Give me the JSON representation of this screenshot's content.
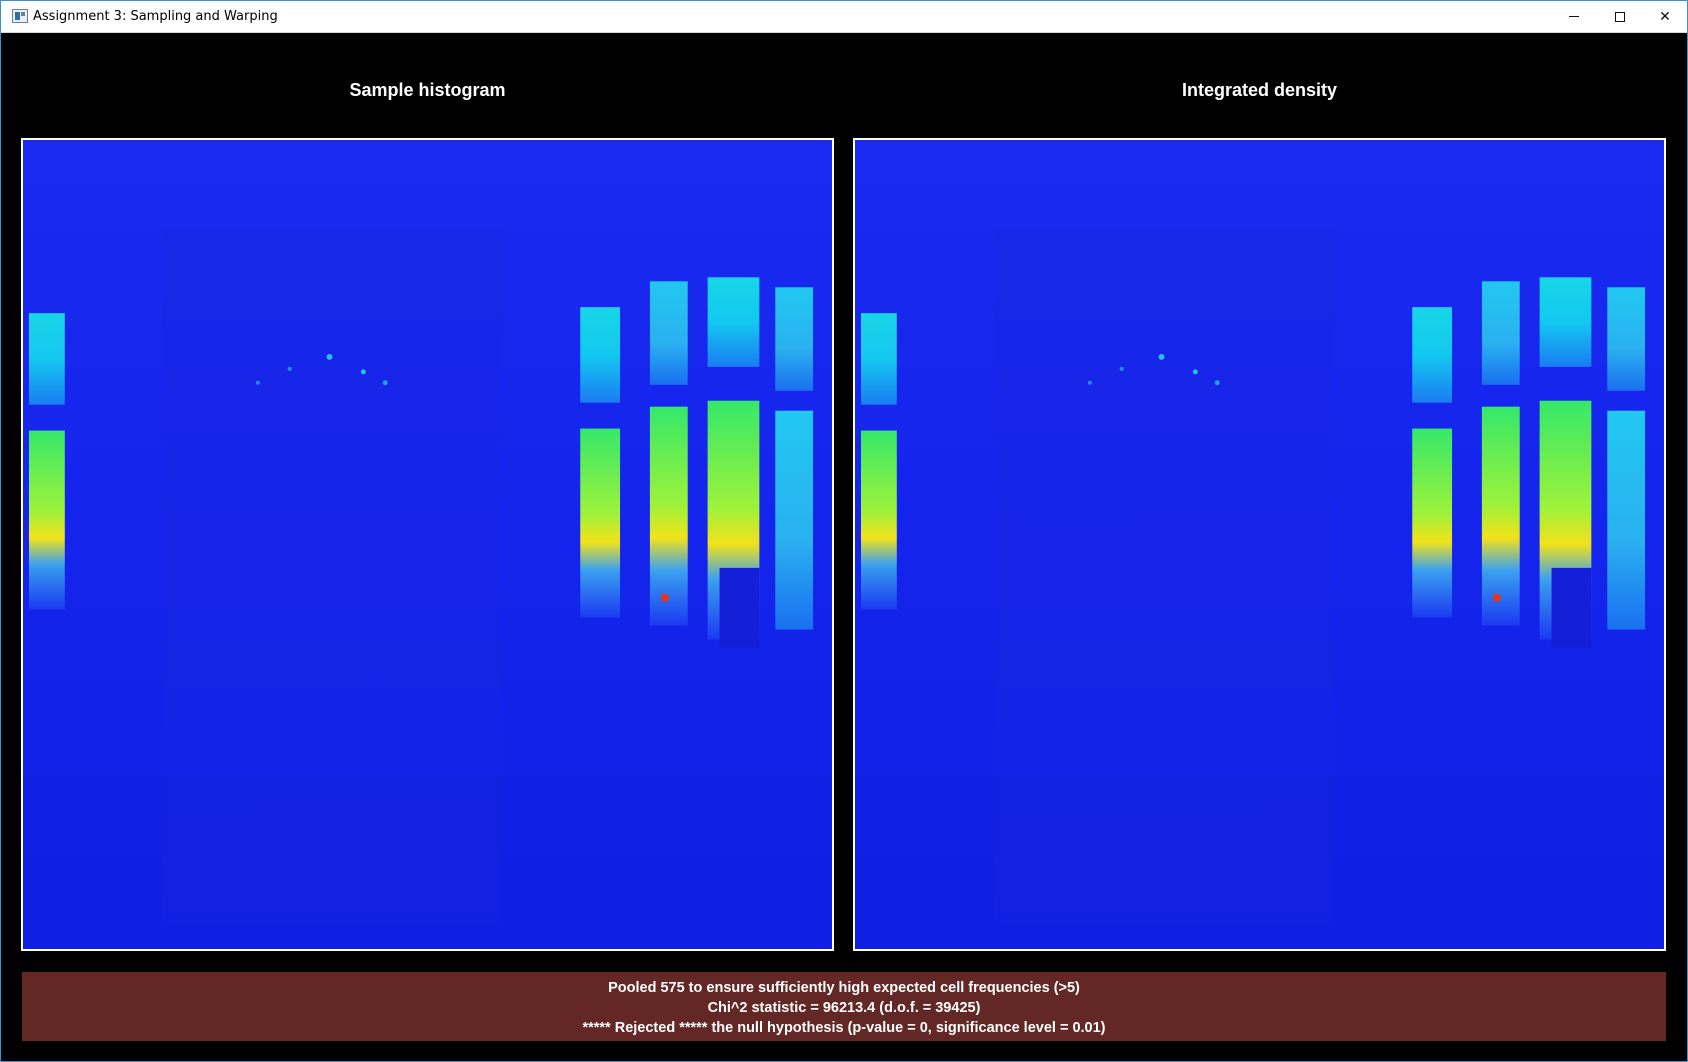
{
  "window": {
    "title": "Assignment 3: Sampling and Warping"
  },
  "panels": [
    {
      "title": "Sample histogram"
    },
    {
      "title": "Integrated density"
    }
  ],
  "status": {
    "line1": "Pooled 575 to ensure sufficiently high expected cell frequencies (>5)",
    "line2": "Chi^2 statistic = 96213.4 (d.o.f. = 39425)",
    "line3": "***** Rejected ***** the null hypothesis (p-value = 0, significance level = 0.01)"
  },
  "colors": {
    "background": "#000000",
    "plot_base": "#1424ec",
    "status_bg": "#632826",
    "text": "#ffffff"
  }
}
